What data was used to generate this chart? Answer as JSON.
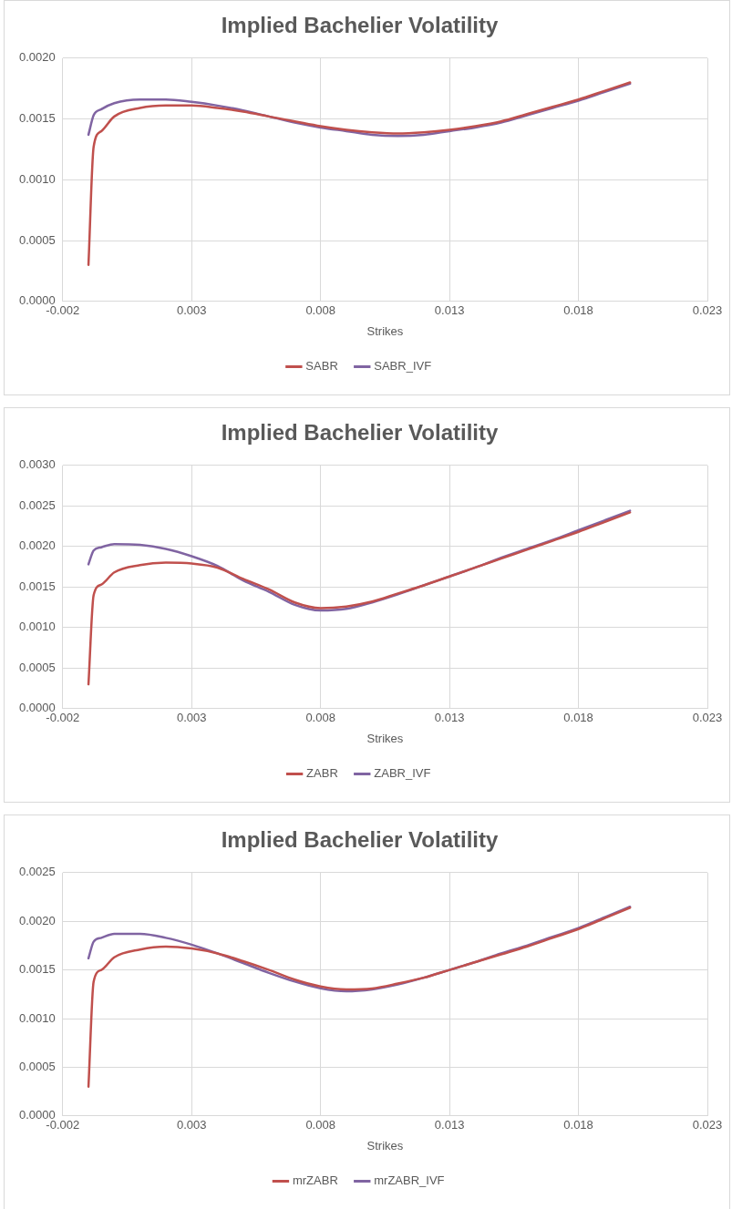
{
  "chart_data": [
    {
      "type": "line",
      "title": "Implied Bachelier Volatility",
      "xlabel": "Strikes",
      "x": [
        -0.001,
        -0.0008,
        -0.0005,
        0,
        0.001,
        0.002,
        0.003,
        0.004,
        0.005,
        0.006,
        0.007,
        0.008,
        0.009,
        0.01,
        0.011,
        0.012,
        0.013,
        0.014,
        0.015,
        0.016,
        0.017,
        0.018,
        0.019,
        0.02
      ],
      "series": [
        {
          "name": "SABR",
          "color": "#c0504d",
          "values": [
            0.0003,
            0.00127,
            0.0014,
            0.00152,
            0.00159,
            0.00161,
            0.00161,
            0.00159,
            0.00156,
            0.00152,
            0.00148,
            0.00144,
            0.00141,
            0.00139,
            0.00138,
            0.00139,
            0.00141,
            0.00144,
            0.00148,
            0.00154,
            0.0016,
            0.00166,
            0.00173,
            0.0018
          ]
        },
        {
          "name": "SABR_IVF",
          "color": "#8064a2",
          "values": [
            0.00137,
            0.00153,
            0.00158,
            0.00163,
            0.00166,
            0.00166,
            0.00164,
            0.00161,
            0.00157,
            0.00152,
            0.00147,
            0.00143,
            0.0014,
            0.00137,
            0.00136,
            0.00137,
            0.0014,
            0.00143,
            0.00147,
            0.00153,
            0.00159,
            0.00165,
            0.00172,
            0.00179
          ]
        }
      ],
      "xlim": [
        -0.002,
        0.023
      ],
      "xticks": [
        -0.002,
        0.003,
        0.008,
        0.013,
        0.018,
        0.023
      ],
      "ylim": [
        0,
        0.002
      ],
      "yticks": [
        {
          "value": 0,
          "label": "0.0000"
        },
        {
          "value": 0.0005,
          "label": "0.0005"
        },
        {
          "value": 0.001,
          "label": "0.0010"
        },
        {
          "value": 0.0015,
          "label": "0.0015"
        },
        {
          "value": 0.002,
          "label": "0.0020"
        }
      ],
      "grid": true,
      "legend": "bottom",
      "marker": "none",
      "line_style": "solid"
    },
    {
      "type": "line",
      "title": "Implied Bachelier Volatility",
      "xlabel": "Strikes",
      "x": [
        -0.001,
        -0.0008,
        -0.0005,
        0,
        0.001,
        0.002,
        0.003,
        0.004,
        0.005,
        0.006,
        0.007,
        0.008,
        0.009,
        0.01,
        0.011,
        0.012,
        0.013,
        0.014,
        0.015,
        0.016,
        0.017,
        0.018,
        0.019,
        0.02
      ],
      "series": [
        {
          "name": "ZABR",
          "color": "#c0504d",
          "values": [
            0.0003,
            0.0014,
            0.00153,
            0.00168,
            0.00177,
            0.0018,
            0.00179,
            0.00174,
            0.0016,
            0.00147,
            0.00131,
            0.00124,
            0.00126,
            0.00132,
            0.00142,
            0.00152,
            0.00163,
            0.00174,
            0.00185,
            0.00196,
            0.00207,
            0.00218,
            0.0023,
            0.00242
          ]
        },
        {
          "name": "ZABR_IVF",
          "color": "#8064a2",
          "values": [
            0.00178,
            0.00195,
            0.00199,
            0.00203,
            0.00202,
            0.00197,
            0.00188,
            0.00176,
            0.00158,
            0.00144,
            0.00128,
            0.00121,
            0.00123,
            0.00131,
            0.00141,
            0.00152,
            0.00163,
            0.00174,
            0.00186,
            0.00197,
            0.00208,
            0.0022,
            0.00232,
            0.00244
          ]
        }
      ],
      "xlim": [
        -0.002,
        0.023
      ],
      "xticks": [
        -0.002,
        0.003,
        0.008,
        0.013,
        0.018,
        0.023
      ],
      "ylim": [
        0,
        0.003
      ],
      "yticks": [
        {
          "value": 0,
          "label": "0.0000"
        },
        {
          "value": 0.0005,
          "label": "0.0005"
        },
        {
          "value": 0.001,
          "label": "0.0010"
        },
        {
          "value": 0.0015,
          "label": "0.0015"
        },
        {
          "value": 0.002,
          "label": "0.0020"
        },
        {
          "value": 0.0025,
          "label": "0.0025"
        },
        {
          "value": 0.003,
          "label": "0.0030"
        }
      ],
      "grid": true,
      "legend": "bottom",
      "marker": "none",
      "line_style": "solid"
    },
    {
      "type": "line",
      "title": "Implied Bachelier Volatility",
      "xlabel": "Strikes",
      "x": [
        -0.001,
        -0.0008,
        -0.0005,
        0,
        0.001,
        0.002,
        0.003,
        0.004,
        0.005,
        0.006,
        0.007,
        0.008,
        0.009,
        0.01,
        0.011,
        0.012,
        0.013,
        0.014,
        0.015,
        0.016,
        0.017,
        0.018,
        0.019,
        0.02
      ],
      "series": [
        {
          "name": "mrZABR",
          "color": "#c0504d",
          "values": [
            0.0003,
            0.00138,
            0.0015,
            0.00163,
            0.00171,
            0.00174,
            0.00172,
            0.00167,
            0.00159,
            0.0015,
            0.0014,
            0.00133,
            0.0013,
            0.00131,
            0.00136,
            0.00142,
            0.0015,
            0.00158,
            0.00166,
            0.00174,
            0.00183,
            0.00192,
            0.00203,
            0.00214
          ]
        },
        {
          "name": "mrZABR_IVF",
          "color": "#8064a2",
          "values": [
            0.00162,
            0.00179,
            0.00183,
            0.00187,
            0.00187,
            0.00183,
            0.00176,
            0.00167,
            0.00157,
            0.00147,
            0.00138,
            0.00131,
            0.00128,
            0.0013,
            0.00135,
            0.00142,
            0.0015,
            0.00158,
            0.00167,
            0.00175,
            0.00184,
            0.00193,
            0.00204,
            0.00215
          ]
        }
      ],
      "xlim": [
        -0.002,
        0.023
      ],
      "xticks": [
        -0.002,
        0.003,
        0.008,
        0.013,
        0.018,
        0.023
      ],
      "ylim": [
        0,
        0.0025
      ],
      "yticks": [
        {
          "value": 0,
          "label": "0.0000"
        },
        {
          "value": 0.0005,
          "label": "0.0005"
        },
        {
          "value": 0.001,
          "label": "0.0010"
        },
        {
          "value": 0.0015,
          "label": "0.0015"
        },
        {
          "value": 0.002,
          "label": "0.0020"
        },
        {
          "value": 0.0025,
          "label": "0.0025"
        }
      ],
      "grid": true,
      "legend": "bottom",
      "marker": "none",
      "line_style": "solid"
    }
  ]
}
